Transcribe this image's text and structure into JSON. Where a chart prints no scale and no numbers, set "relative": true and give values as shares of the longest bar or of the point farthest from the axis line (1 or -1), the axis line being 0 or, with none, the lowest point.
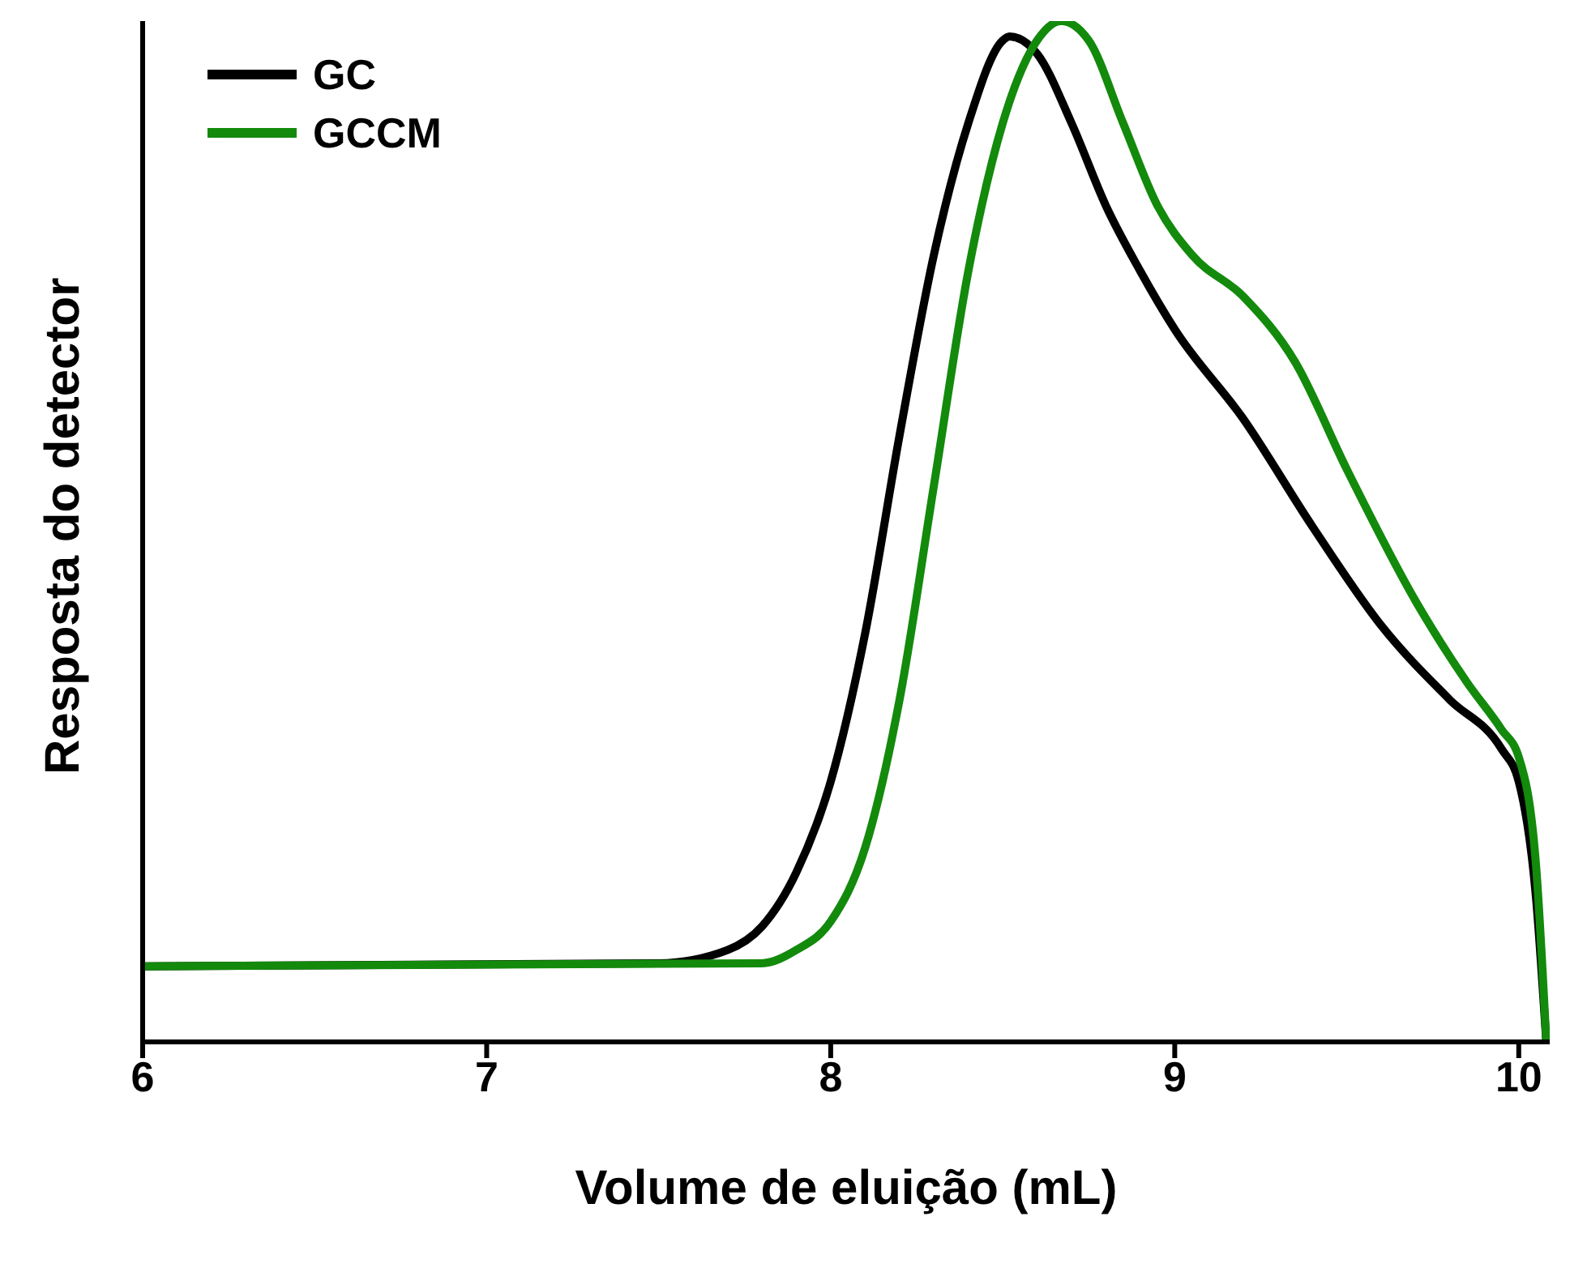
{
  "chart_data": {
    "type": "line",
    "xlabel": "Volume de eluição (mL)",
    "ylabel": "Resposta do detector",
    "relative": true,
    "xlim": [
      6,
      10.09
    ],
    "xticks": [
      6,
      7,
      8,
      9,
      10
    ],
    "legend": "top left",
    "marker": "none",
    "line_style": "solid",
    "series": [
      {
        "name": "GC",
        "color": "#000000",
        "x": [
          6,
          7.5,
          7.7,
          7.8,
          7.9,
          8.0,
          8.1,
          8.2,
          8.3,
          8.4,
          8.5,
          8.52,
          8.6,
          8.7,
          8.8,
          8.9,
          9.0,
          9.2,
          9.4,
          9.6,
          9.8,
          9.95,
          10.0,
          10.05,
          10.08
        ],
        "values": [
          0.074,
          0.077,
          0.09,
          0.113,
          0.166,
          0.255,
          0.4,
          0.594,
          0.771,
          0.9,
          0.981,
          0.985,
          0.968,
          0.9,
          0.819,
          0.755,
          0.698,
          0.61,
          0.505,
          0.408,
          0.335,
          0.287,
          0.255,
          0.142,
          0
        ]
      },
      {
        "name": "GCCM",
        "color": "#138a0c",
        "x": [
          6,
          7.8,
          7.9,
          8.0,
          8.1,
          8.2,
          8.3,
          8.4,
          8.5,
          8.6,
          8.67,
          8.75,
          8.85,
          8.95,
          9.05,
          9.2,
          9.35,
          9.5,
          9.7,
          9.85,
          9.95,
          10.0,
          10.05,
          10.08
        ],
        "values": [
          0.074,
          0.077,
          0.09,
          0.118,
          0.19,
          0.335,
          0.545,
          0.755,
          0.9,
          0.981,
          1,
          0.981,
          0.9,
          0.819,
          0.771,
          0.73,
          0.666,
          0.561,
          0.432,
          0.352,
          0.306,
          0.279,
          0.174,
          0
        ]
      }
    ]
  }
}
